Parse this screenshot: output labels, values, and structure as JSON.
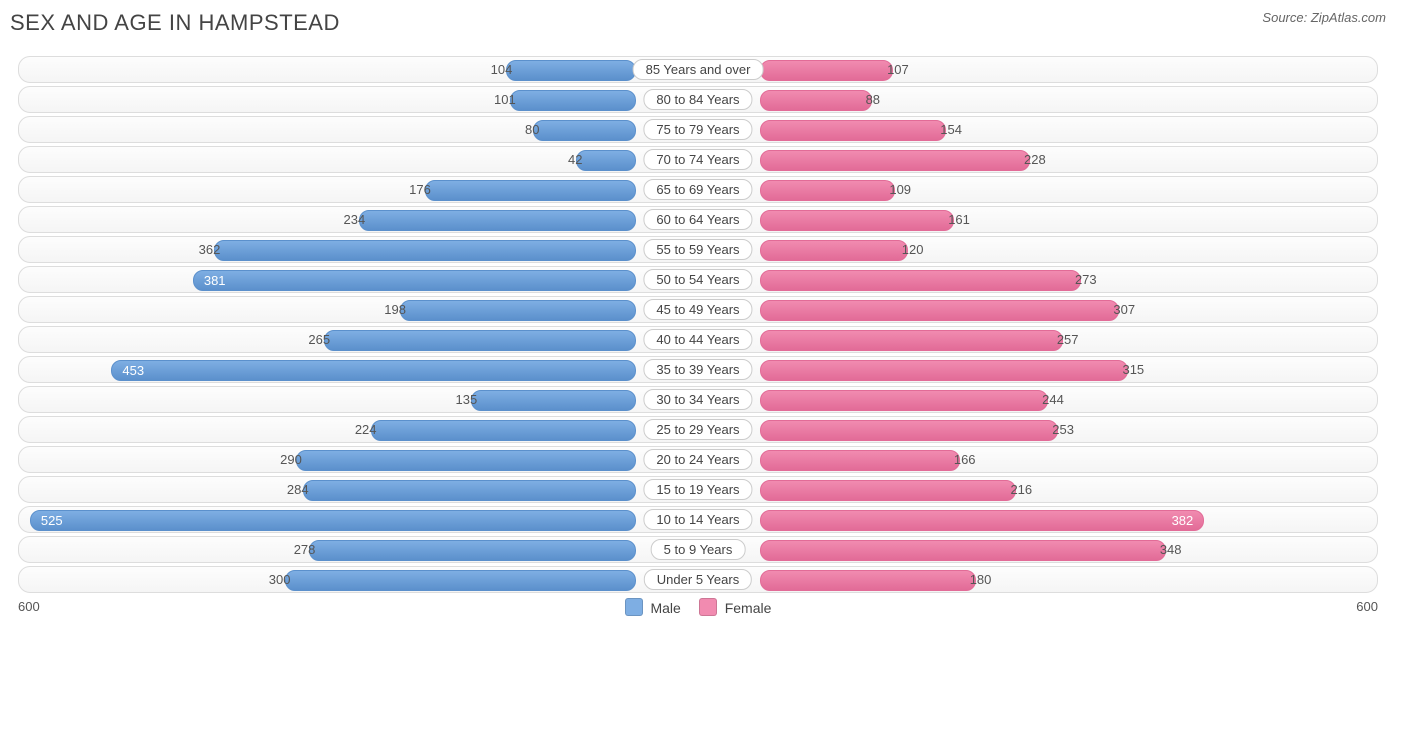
{
  "title": "SEX AND AGE IN HAMPSTEAD",
  "source_label": "Source:",
  "source_name": "ZipAtlas.com",
  "chart": {
    "type": "population-pyramid",
    "axis_max": 600,
    "axis_left_label": "600",
    "axis_right_label": "600",
    "male_color": "#7eaee3",
    "male_border": "#5b90cc",
    "female_color": "#f18bb0",
    "female_border": "#e26b97",
    "row_bg_top": "#fdfdfd",
    "row_bg_bottom": "#f5f5f5",
    "row_border": "#dddddd",
    "catlabel_border": "#cccccc",
    "inlabel_threshold": 370,
    "legend": {
      "male": "Male",
      "female": "Female"
    },
    "categories_top_to_bottom": [
      {
        "label": "85 Years and over",
        "male": 104,
        "female": 107
      },
      {
        "label": "80 to 84 Years",
        "male": 101,
        "female": 88
      },
      {
        "label": "75 to 79 Years",
        "male": 80,
        "female": 154
      },
      {
        "label": "70 to 74 Years",
        "male": 42,
        "female": 228
      },
      {
        "label": "65 to 69 Years",
        "male": 176,
        "female": 109
      },
      {
        "label": "60 to 64 Years",
        "male": 234,
        "female": 161
      },
      {
        "label": "55 to 59 Years",
        "male": 362,
        "female": 120
      },
      {
        "label": "50 to 54 Years",
        "male": 381,
        "female": 273
      },
      {
        "label": "45 to 49 Years",
        "male": 198,
        "female": 307
      },
      {
        "label": "40 to 44 Years",
        "male": 265,
        "female": 257
      },
      {
        "label": "35 to 39 Years",
        "male": 453,
        "female": 315
      },
      {
        "label": "30 to 34 Years",
        "male": 135,
        "female": 244
      },
      {
        "label": "25 to 29 Years",
        "male": 224,
        "female": 253
      },
      {
        "label": "20 to 24 Years",
        "male": 290,
        "female": 166
      },
      {
        "label": "15 to 19 Years",
        "male": 284,
        "female": 216
      },
      {
        "label": "10 to 14 Years",
        "male": 525,
        "female": 382
      },
      {
        "label": "5 to 9 Years",
        "male": 278,
        "female": 348
      },
      {
        "label": "Under 5 Years",
        "male": 300,
        "female": 180
      }
    ]
  }
}
